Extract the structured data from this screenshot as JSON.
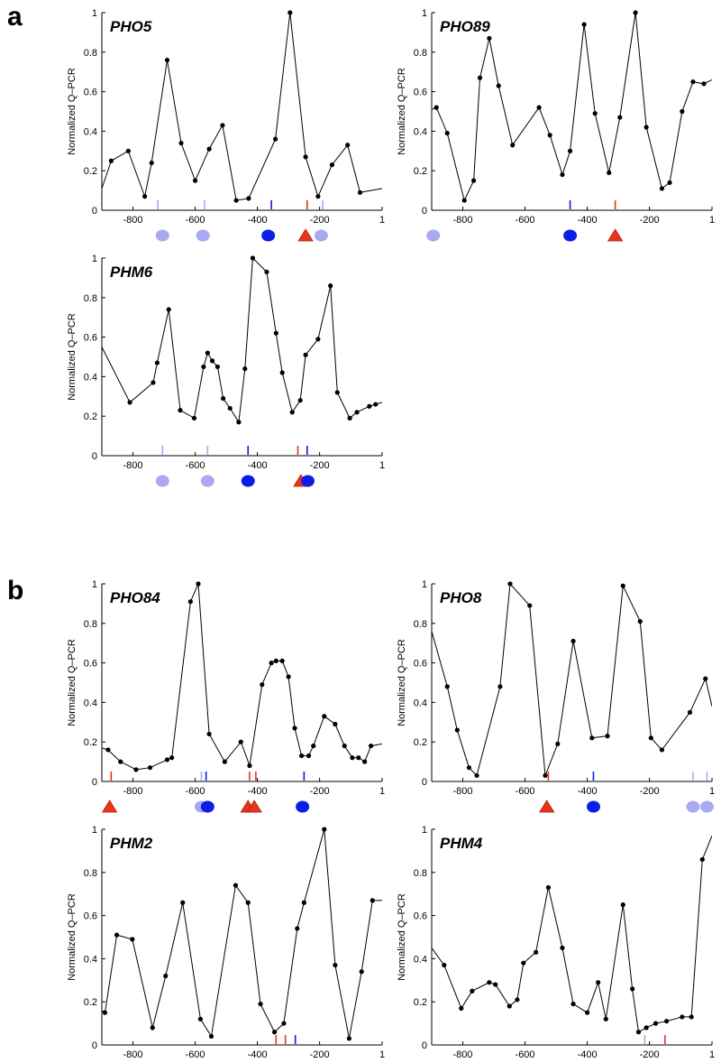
{
  "figure": {
    "panel_labels": [
      "a",
      "b"
    ]
  },
  "colors": {
    "line": "#000000",
    "light_site": "#a9a9f2",
    "dark_site": "#0a1ee6",
    "red_site": "#e8341c",
    "red_triangle_outline": "#b01f0a"
  },
  "chart_data": [
    {
      "type": "line",
      "title": "PHO5",
      "ylabel": "Normalized Q–PCR",
      "xlim": [
        -900,
        1
      ],
      "ylim": [
        0,
        1
      ],
      "xticks": [
        -800,
        -600,
        -400,
        -200,
        1
      ],
      "yticks": [
        0,
        0.2,
        0.4,
        0.6,
        0.8,
        1
      ],
      "x": [
        -900,
        -870,
        -815,
        -762,
        -740,
        -690,
        -645,
        -600,
        -555,
        -512,
        -468,
        -428,
        -342,
        -295,
        -245,
        -205,
        -160,
        -110,
        -70,
        1
      ],
      "y": [
        0.11,
        0.25,
        0.3,
        0.07,
        0.24,
        0.76,
        0.34,
        0.15,
        0.31,
        0.43,
        0.05,
        0.06,
        0.36,
        1.0,
        0.27,
        0.07,
        0.23,
        0.33,
        0.09,
        0.11
      ],
      "site_ticks": [
        {
          "x": -720,
          "kind": "light"
        },
        {
          "x": -570,
          "kind": "light"
        },
        {
          "x": -355,
          "kind": "dark"
        },
        {
          "x": -240,
          "kind": "red"
        },
        {
          "x": -190,
          "kind": "light"
        }
      ],
      "site_markers": [
        {
          "x": -705,
          "kind": "light-oval"
        },
        {
          "x": -575,
          "kind": "light-oval"
        },
        {
          "x": -365,
          "kind": "dark-oval"
        },
        {
          "x": -245,
          "kind": "red-triangle"
        },
        {
          "x": -195,
          "kind": "light-oval"
        }
      ]
    },
    {
      "type": "line",
      "title": "PHO89",
      "ylabel": "Normalized Q–PCR",
      "xlim": [
        -900,
        1
      ],
      "ylim": [
        0,
        1
      ],
      "xticks": [
        -800,
        -600,
        -400,
        -200,
        1
      ],
      "yticks": [
        0,
        0.2,
        0.4,
        0.6,
        0.8,
        1
      ],
      "x": [
        -900,
        -885,
        -850,
        -795,
        -765,
        -745,
        -715,
        -685,
        -640,
        -555,
        -520,
        -480,
        -455,
        -410,
        -375,
        -330,
        -295,
        -245,
        -210,
        -160,
        -135,
        -95,
        -60,
        -25,
        1
      ],
      "y": [
        0.51,
        0.52,
        0.39,
        0.05,
        0.15,
        0.67,
        0.87,
        0.63,
        0.33,
        0.52,
        0.38,
        0.18,
        0.3,
        0.94,
        0.49,
        0.19,
        0.47,
        1.0,
        0.42,
        0.11,
        0.14,
        0.5,
        0.65,
        0.64,
        0.66
      ],
      "site_ticks": [
        {
          "x": -455,
          "kind": "dark"
        },
        {
          "x": -310,
          "kind": "red"
        }
      ],
      "site_markers": [
        {
          "x": -895,
          "kind": "light-oval"
        },
        {
          "x": -455,
          "kind": "dark-oval"
        },
        {
          "x": -310,
          "kind": "red-triangle"
        }
      ]
    },
    {
      "type": "line",
      "title": "PHM6",
      "ylabel": "Normalized Q–PCR",
      "xlim": [
        -900,
        1
      ],
      "ylim": [
        0,
        1
      ],
      "xticks": [
        -800,
        -600,
        -400,
        -200,
        1
      ],
      "yticks": [
        0,
        0.2,
        0.4,
        0.6,
        0.8,
        1
      ],
      "x": [
        -900,
        -810,
        -735,
        -722,
        -685,
        -648,
        -603,
        -573,
        -560,
        -545,
        -528,
        -510,
        -488,
        -460,
        -440,
        -415,
        -370,
        -340,
        -320,
        -288,
        -262,
        -245,
        -205,
        -165,
        -143,
        -103,
        -80,
        -40,
        -20,
        1
      ],
      "y": [
        0.55,
        0.27,
        0.37,
        0.47,
        0.74,
        0.23,
        0.19,
        0.45,
        0.52,
        0.48,
        0.45,
        0.29,
        0.24,
        0.17,
        0.44,
        1.0,
        0.93,
        0.62,
        0.42,
        0.22,
        0.28,
        0.51,
        0.59,
        0.86,
        0.32,
        0.19,
        0.22,
        0.25,
        0.26,
        0.27
      ],
      "site_ticks": [
        {
          "x": -705,
          "kind": "light"
        },
        {
          "x": -560,
          "kind": "light"
        },
        {
          "x": -430,
          "kind": "dark"
        },
        {
          "x": -270,
          "kind": "red"
        },
        {
          "x": -240,
          "kind": "dark"
        }
      ],
      "site_markers": [
        {
          "x": -705,
          "kind": "light-oval"
        },
        {
          "x": -560,
          "kind": "light-oval"
        },
        {
          "x": -430,
          "kind": "dark-oval"
        },
        {
          "x": -260,
          "kind": "red-triangle"
        },
        {
          "x": -238,
          "kind": "dark-oval"
        }
      ]
    },
    {
      "type": "line",
      "title": "PHO84",
      "ylabel": "Normalized Q–PCR",
      "xlim": [
        -900,
        1
      ],
      "ylim": [
        0,
        1
      ],
      "xticks": [
        -800,
        -600,
        -400,
        -200,
        1
      ],
      "yticks": [
        0,
        0.2,
        0.4,
        0.6,
        0.8,
        1
      ],
      "x": [
        -900,
        -880,
        -840,
        -790,
        -745,
        -690,
        -675,
        -615,
        -590,
        -555,
        -505,
        -453,
        -425,
        -385,
        -355,
        -340,
        -320,
        -300,
        -280,
        -258,
        -235,
        -220,
        -185,
        -150,
        -120,
        -95,
        -75,
        -55,
        -35,
        1
      ],
      "y": [
        0.17,
        0.16,
        0.1,
        0.06,
        0.07,
        0.11,
        0.12,
        0.91,
        1.0,
        0.24,
        0.1,
        0.2,
        0.08,
        0.49,
        0.6,
        0.61,
        0.61,
        0.53,
        0.27,
        0.13,
        0.13,
        0.18,
        0.33,
        0.29,
        0.18,
        0.12,
        0.12,
        0.1,
        0.18,
        0.19
      ],
      "site_ticks": [
        {
          "x": -870,
          "kind": "red"
        },
        {
          "x": -580,
          "kind": "light"
        },
        {
          "x": -565,
          "kind": "dark"
        },
        {
          "x": -425,
          "kind": "red"
        },
        {
          "x": -405,
          "kind": "red"
        },
        {
          "x": -250,
          "kind": "dark"
        }
      ],
      "site_markers": [
        {
          "x": -875,
          "kind": "red-triangle"
        },
        {
          "x": -580,
          "kind": "light-oval"
        },
        {
          "x": -560,
          "kind": "dark-oval"
        },
        {
          "x": -430,
          "kind": "red-triangle"
        },
        {
          "x": -410,
          "kind": "red-triangle"
        },
        {
          "x": -255,
          "kind": "dark-oval"
        }
      ]
    },
    {
      "type": "line",
      "title": "PHO8",
      "ylabel": "Normalized Q–PCR",
      "xlim": [
        -900,
        1
      ],
      "ylim": [
        0,
        1
      ],
      "xticks": [
        -800,
        -600,
        -400,
        -200,
        1
      ],
      "yticks": [
        0,
        0.2,
        0.4,
        0.6,
        0.8,
        1
      ],
      "x": [
        -900,
        -850,
        -818,
        -780,
        -755,
        -680,
        -648,
        -585,
        -535,
        -495,
        -445,
        -385,
        -335,
        -285,
        -230,
        -195,
        -160,
        -70,
        -20,
        1
      ],
      "y": [
        0.76,
        0.48,
        0.26,
        0.07,
        0.03,
        0.48,
        1.0,
        0.89,
        0.03,
        0.19,
        0.71,
        0.22,
        0.23,
        0.99,
        0.81,
        0.22,
        0.16,
        0.35,
        0.52,
        0.38
      ],
      "site_ticks": [
        {
          "x": -525,
          "kind": "red"
        },
        {
          "x": -380,
          "kind": "dark"
        },
        {
          "x": -60,
          "kind": "light"
        },
        {
          "x": -15,
          "kind": "light"
        }
      ],
      "site_markers": [
        {
          "x": -530,
          "kind": "red-triangle"
        },
        {
          "x": -380,
          "kind": "dark-oval"
        },
        {
          "x": -60,
          "kind": "light-oval"
        },
        {
          "x": -15,
          "kind": "light-oval"
        }
      ]
    },
    {
      "type": "line",
      "title": "PHM2",
      "ylabel": "Normalized Q–PCR",
      "xlim": [
        -900,
        1
      ],
      "ylim": [
        0,
        1
      ],
      "xticks": [
        -800,
        -600,
        -400,
        -200,
        1
      ],
      "yticks": [
        0,
        0.2,
        0.4,
        0.6,
        0.8,
        1
      ],
      "x": [
        -900,
        -890,
        -852,
        -802,
        -737,
        -695,
        -640,
        -583,
        -548,
        -470,
        -430,
        -390,
        -345,
        -315,
        -272,
        -250,
        -185,
        -150,
        -105,
        -65,
        -30,
        1
      ],
      "y": [
        0.16,
        0.15,
        0.51,
        0.49,
        0.08,
        0.32,
        0.66,
        0.12,
        0.04,
        0.74,
        0.66,
        0.19,
        0.06,
        0.1,
        0.54,
        0.66,
        1.0,
        0.37,
        0.03,
        0.34,
        0.67,
        0.67
      ],
      "site_ticks": [
        {
          "x": -340,
          "kind": "red"
        },
        {
          "x": -310,
          "kind": "red"
        },
        {
          "x": -278,
          "kind": "dark"
        }
      ],
      "site_markers": [
        {
          "x": -345,
          "kind": "red-triangle"
        },
        {
          "x": -312,
          "kind": "red-triangle"
        },
        {
          "x": -278,
          "kind": "dark-oval"
        }
      ]
    },
    {
      "type": "line",
      "title": "PHM4",
      "ylabel": "Normalized Q–PCR",
      "xlim": [
        -900,
        1
      ],
      "ylim": [
        0,
        1
      ],
      "xticks": [
        -800,
        -600,
        -400,
        -200,
        1
      ],
      "yticks": [
        0,
        0.2,
        0.4,
        0.6,
        0.8,
        1
      ],
      "x": [
        -900,
        -860,
        -805,
        -770,
        -715,
        -695,
        -650,
        -625,
        -605,
        -565,
        -525,
        -480,
        -445,
        -400,
        -365,
        -340,
        -285,
        -255,
        -235,
        -210,
        -180,
        -145,
        -95,
        -65,
        -30,
        1
      ],
      "y": [
        0.45,
        0.37,
        0.17,
        0.25,
        0.29,
        0.28,
        0.18,
        0.21,
        0.38,
        0.43,
        0.73,
        0.45,
        0.19,
        0.15,
        0.29,
        0.12,
        0.65,
        0.26,
        0.06,
        0.08,
        0.1,
        0.11,
        0.13,
        0.13,
        0.86,
        0.97
      ],
      "site_ticks": [
        {
          "x": -215,
          "kind": "light"
        },
        {
          "x": -150,
          "kind": "red"
        }
      ],
      "site_markers": [
        {
          "x": -220,
          "kind": "light-oval"
        },
        {
          "x": -155,
          "kind": "red-triangle"
        }
      ]
    }
  ]
}
